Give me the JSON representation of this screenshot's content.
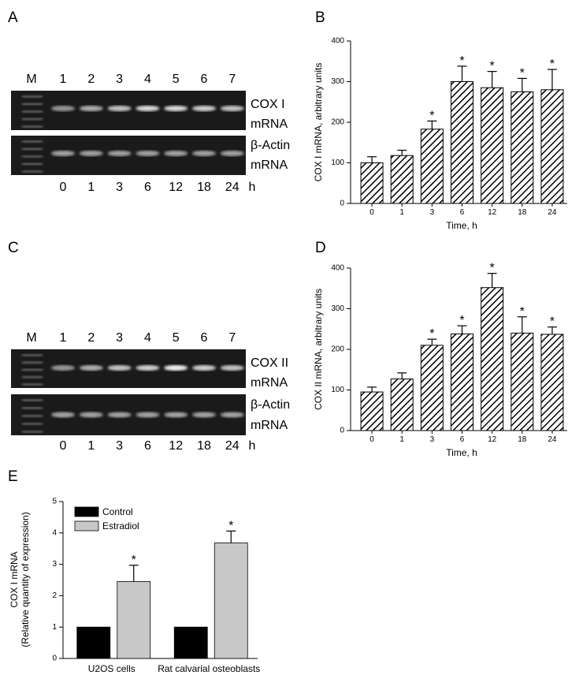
{
  "gels": [
    {
      "label": "A",
      "marker": "M",
      "lanes": [
        "1",
        "2",
        "3",
        "4",
        "5",
        "6",
        "7"
      ],
      "rows": [
        [
          "COX I",
          "mRNA"
        ],
        [
          "β-Actin",
          "mRNA"
        ]
      ],
      "times": [
        "0",
        "1",
        "3",
        "6",
        "12",
        "18",
        "24"
      ],
      "unit": "h"
    },
    {
      "label": "C",
      "marker": "M",
      "lanes": [
        "1",
        "2",
        "3",
        "4",
        "5",
        "6",
        "7"
      ],
      "rows": [
        [
          "COX II",
          "mRNA"
        ],
        [
          "β-Actin",
          "mRNA"
        ]
      ],
      "times": [
        "0",
        "1",
        "3",
        "6",
        "12",
        "18",
        "24"
      ],
      "unit": "h"
    }
  ],
  "chart_data": [
    {
      "label": "B",
      "type": "bar",
      "ylabel": "COX I mRNA, arbitrary units",
      "xlabel": "Time, h",
      "categories": [
        "0",
        "1",
        "3",
        "6",
        "12",
        "18",
        "24"
      ],
      "values": [
        100,
        118,
        183,
        300,
        285,
        275,
        280
      ],
      "errors": [
        15,
        13,
        20,
        38,
        40,
        33,
        50
      ],
      "markers": [
        null,
        null,
        "*",
        "*",
        "*",
        "*",
        "*"
      ],
      "ylim": [
        0,
        400
      ],
      "yticks": [
        0,
        100,
        200,
        300,
        400
      ],
      "hatched": true
    },
    {
      "label": "D",
      "type": "bar",
      "ylabel": "COX II mRNA, arbitrary units",
      "xlabel": "Time, h",
      "categories": [
        "0",
        "1",
        "3",
        "6",
        "12",
        "18",
        "24"
      ],
      "values": [
        95,
        127,
        210,
        238,
        352,
        240,
        237
      ],
      "errors": [
        12,
        15,
        15,
        20,
        35,
        40,
        18
      ],
      "markers": [
        null,
        null,
        "*",
        "*",
        "*",
        "*",
        "*"
      ],
      "ylim": [
        0,
        400
      ],
      "yticks": [
        0,
        100,
        200,
        300,
        400
      ],
      "hatched": true
    },
    {
      "label": "E",
      "type": "grouped-bar",
      "ylabel": [
        "COX I mRNA",
        "(Relative quantity of expression)"
      ],
      "categories": [
        "U2OS cells",
        "Rat calvarial osteoblasts"
      ],
      "series": [
        {
          "name": "Control",
          "color": "#000000",
          "values": [
            1,
            1
          ],
          "errors": [
            null,
            null
          ],
          "markers": [
            null,
            null
          ]
        },
        {
          "name": "Estradiol",
          "color": "#c8c8c8",
          "values": [
            2.45,
            3.68
          ],
          "errors": [
            0.52,
            0.38
          ],
          "markers": [
            "*",
            "*"
          ]
        }
      ],
      "ylim": [
        0,
        5
      ],
      "yticks": [
        0,
        1,
        2,
        3,
        4,
        5
      ],
      "legend": "upper left"
    }
  ]
}
